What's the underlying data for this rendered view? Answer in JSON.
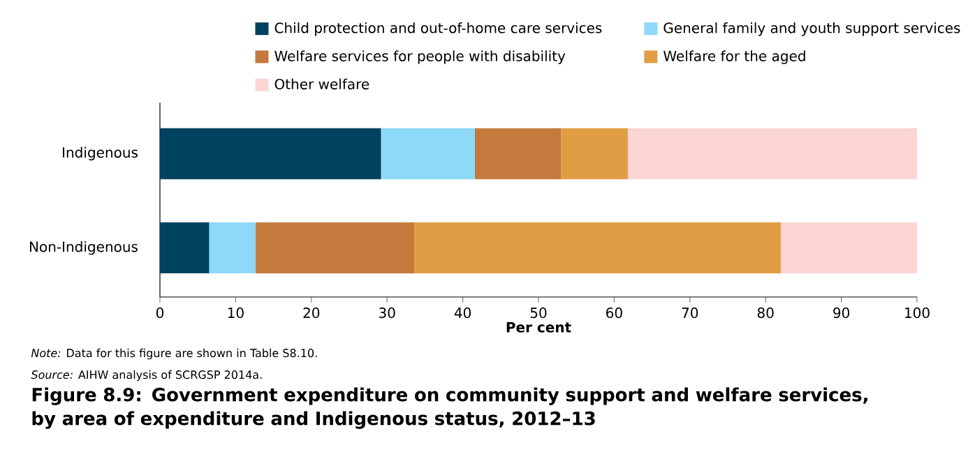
{
  "chart_data": {
    "type": "bar",
    "orientation": "horizontal",
    "stacked": true,
    "title": "Figure 8.9: Government expenditure on community support and welfare services, by area of expenditure and Indigenous status, 2012–13",
    "xlabel": "Per cent",
    "categories": [
      "Indigenous",
      "Non-Indigenous"
    ],
    "series": [
      {
        "name": "Child protection and out-of-home care services",
        "color": "#00415f",
        "values": [
          29.2,
          6.5
        ]
      },
      {
        "name": "General family and youth support services",
        "color": "#8ed9f8",
        "values": [
          12.4,
          6.1
        ]
      },
      {
        "name": "Welfare services for people with disability",
        "color": "#c47a3d",
        "values": [
          11.4,
          21.0
        ]
      },
      {
        "name": "Welfare for the aged",
        "color": "#e09d44",
        "values": [
          8.8,
          48.4
        ]
      },
      {
        "name": "Other welfare",
        "color": "#fcd6d3",
        "values": [
          38.2,
          18.0
        ]
      }
    ],
    "xlim": [
      0,
      100
    ],
    "xticks": [
      0,
      10,
      20,
      30,
      40,
      50,
      60,
      70,
      80,
      90,
      100
    ],
    "legend": "top",
    "annotations": [
      "*Note:* Data for this figure are shown in Table S8.10.",
      "*Source:* AIHW analysis of SCRGSP 2014a."
    ]
  }
}
